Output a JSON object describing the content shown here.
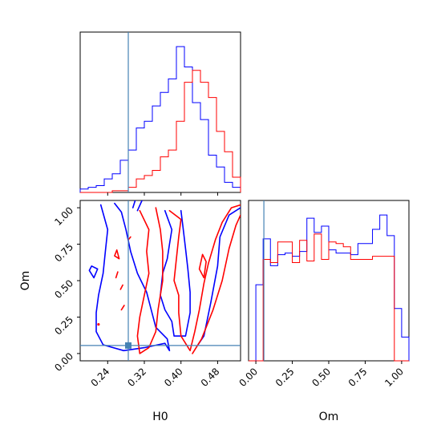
{
  "chart_data": {
    "type": "corner",
    "colors": {
      "series_a": "#0000ff",
      "series_b": "#ff0000",
      "truth": "#4682b4"
    },
    "parameters": [
      "H0",
      "Om"
    ],
    "truth": {
      "H0": 0.285,
      "Om": 0.055
    },
    "panels": [
      {
        "id": "H0-marginal",
        "type": "histogram",
        "xlim": [
          0.18,
          0.53
        ],
        "bin_edges": [
          0.18,
          0.1975,
          0.215,
          0.2325,
          0.25,
          0.2675,
          0.285,
          0.3025,
          0.32,
          0.3375,
          0.355,
          0.3725,
          0.39,
          0.4075,
          0.425,
          0.4425,
          0.46,
          0.4775,
          0.495,
          0.5125,
          0.53
        ],
        "series": [
          {
            "color": "blue",
            "counts": [
              2,
              3,
              4,
              8,
              11,
              19,
              25,
              38,
              42,
              51,
              59,
              67,
              86,
              74,
              53,
              43,
              22,
              15,
              6,
              3
            ]
          },
          {
            "color": "red",
            "counts": [
              0,
              0,
              0,
              0,
              1,
              1,
              3,
              8,
              10,
              13,
              21,
              25,
              42,
              65,
              72,
              65,
              56,
              36,
              24,
              9
            ]
          }
        ]
      },
      {
        "id": "Om-marginal",
        "type": "histogram",
        "xlim": [
          -0.05,
          1.05
        ],
        "bin_edges": [
          -0.05,
          0.0,
          0.05,
          0.1,
          0.15,
          0.2,
          0.25,
          0.3,
          0.35,
          0.4,
          0.45,
          0.5,
          0.55,
          0.6,
          0.65,
          0.7,
          0.75,
          0.8,
          0.85,
          0.9,
          0.95,
          1.0,
          1.05
        ],
        "series": [
          {
            "color": "blue",
            "counts": [
              0,
              48,
              77,
              60,
              67,
              68,
              66,
              69,
              90,
              81,
              85,
              70,
              68,
              68,
              67,
              74,
              74,
              83,
              92,
              79,
              33,
              15
            ]
          },
          {
            "color": "red",
            "counts": [
              0,
              0,
              64,
              62,
              75,
              75,
              62,
              76,
              63,
              80,
              64,
              75,
              74,
              72,
              64,
              64,
              64,
              66,
              66,
              66,
              0,
              0
            ]
          }
        ]
      },
      {
        "id": "H0-Om-joint",
        "type": "contour",
        "xlabel": "H0",
        "ylabel": "Om",
        "xlim": [
          0.18,
          0.53
        ],
        "ylim": [
          -0.05,
          1.05
        ],
        "series": [
          {
            "color": "blue",
            "contours": [
              [
                [
                  0.225,
                  1.02
                ],
                [
                  0.24,
                  0.85
                ],
                [
                  0.235,
                  0.7
                ],
                [
                  0.23,
                  0.55
                ],
                [
                  0.22,
                  0.4
                ],
                [
                  0.215,
                  0.28
                ],
                [
                  0.215,
                  0.15
                ],
                [
                  0.23,
                  0.06
                ],
                [
                  0.275,
                  0.02
                ],
                [
                  0.32,
                  0.04
                ],
                [
                  0.365,
                  0.07
                ],
                [
                  0.375,
                  0.02
                ],
                [
                  0.37,
                  0.1
                ],
                [
                  0.345,
                  0.18
                ],
                [
                  0.335,
                  0.3
                ],
                [
                  0.325,
                  0.42
                ],
                [
                  0.305,
                  0.55
                ],
                [
                  0.29,
                  0.7
                ],
                [
                  0.28,
                  0.85
                ],
                [
                  0.27,
                  0.97
                ],
                [
                  0.255,
                  1.03
                ]
              ],
              [
                [
                  0.365,
                  0.98
                ],
                [
                  0.38,
                  0.85
                ],
                [
                  0.375,
                  0.75
                ],
                [
                  0.37,
                  0.65
                ],
                [
                  0.36,
                  0.55
                ],
                [
                  0.355,
                  0.4
                ],
                [
                  0.365,
                  0.3
                ],
                [
                  0.38,
                  0.22
                ],
                [
                  0.385,
                  0.12
                ],
                [
                  0.41,
                  0.12
                ],
                [
                  0.42,
                  0.28
                ],
                [
                  0.42,
                  0.42
                ],
                [
                  0.415,
                  0.58
                ],
                [
                  0.41,
                  0.72
                ],
                [
                  0.405,
                  0.85
                ],
                [
                  0.4,
                  0.98
                ]
              ],
              [
                [
                  0.435,
                  0.05
                ],
                [
                  0.45,
                  0.12
                ],
                [
                  0.465,
                  0.35
                ],
                [
                  0.48,
                  0.6
                ],
                [
                  0.485,
                  0.8
                ],
                [
                  0.505,
                  0.95
                ],
                [
                  0.53,
                  1.0
                ]
              ],
              [
                [
                  0.2,
                  0.57
                ],
                [
                  0.21,
                  0.52
                ],
                [
                  0.218,
                  0.58
                ],
                [
                  0.205,
                  0.6
                ],
                [
                  0.2,
                  0.57
                ]
              ],
              [
                [
                  0.305,
                  0.98
                ],
                [
                  0.315,
                  1.05
                ]
              ],
              [
                [
                  0.3,
                  1.05
                ],
                [
                  0.295,
                  1.0
                ]
              ]
            ]
          },
          {
            "color": "red",
            "contours": [
              [
                [
                  0.31,
                  0.98
                ],
                [
                  0.33,
                  0.85
                ],
                [
                  0.325,
                  0.7
                ],
                [
                  0.33,
                  0.55
                ],
                [
                  0.32,
                  0.4
                ],
                [
                  0.31,
                  0.25
                ],
                [
                  0.305,
                  0.12
                ],
                [
                  0.31,
                  0.0
                ],
                [
                  0.33,
                  0.04
                ],
                [
                  0.345,
                  0.15
                ],
                [
                  0.35,
                  0.3
                ],
                [
                  0.36,
                  0.5
                ],
                [
                  0.36,
                  0.7
                ],
                [
                  0.355,
                  0.85
                ],
                [
                  0.345,
                  1.0
                ]
              ],
              [
                [
                  0.375,
                  0.98
                ],
                [
                  0.4,
                  0.92
                ],
                [
                  0.395,
                  0.8
                ],
                [
                  0.39,
                  0.65
                ],
                [
                  0.385,
                  0.5
                ],
                [
                  0.395,
                  0.4
                ],
                [
                  0.395,
                  0.28
                ],
                [
                  0.4,
                  0.12
                ],
                [
                  0.42,
                  0.02
                ],
                [
                  0.43,
                  0.15
                ],
                [
                  0.44,
                  0.3
                ],
                [
                  0.45,
                  0.48
                ],
                [
                  0.46,
                  0.62
                ],
                [
                  0.475,
                  0.78
                ],
                [
                  0.49,
                  0.9
                ],
                [
                  0.51,
                  1.0
                ],
                [
                  0.53,
                  1.02
                ]
              ],
              [
                [
                  0.425,
                  0.0
                ],
                [
                  0.445,
                  0.1
                ],
                [
                  0.47,
                  0.3
                ],
                [
                  0.49,
                  0.5
                ],
                [
                  0.505,
                  0.72
                ],
                [
                  0.52,
                  0.88
                ],
                [
                  0.53,
                  0.95
                ]
              ],
              [
                [
                  0.44,
                  0.58
                ],
                [
                  0.45,
                  0.52
                ],
                [
                  0.455,
                  0.63
                ],
                [
                  0.447,
                  0.68
                ],
                [
                  0.44,
                  0.58
                ]
              ],
              [
                [
                  0.22,
                  0.2
                ]
              ],
              [
                [
                  0.258,
                  0.52
                ],
                [
                  0.262,
                  0.56
                ]
              ],
              [
                [
                  0.27,
                  0.3
                ],
                [
                  0.276,
                  0.33
                ]
              ],
              [
                [
                  0.268,
                  0.44
                ],
                [
                  0.273,
                  0.47
                ]
              ],
              [
                [
                  0.285,
                  0.78
                ],
                [
                  0.29,
                  0.8
                ]
              ],
              [
                [
                  0.255,
                  0.67
                ],
                [
                  0.265,
                  0.65
                ],
                [
                  0.26,
                  0.71
                ],
                [
                  0.255,
                  0.67
                ]
              ]
            ]
          }
        ]
      }
    ],
    "ticks": {
      "H0": [
        0.24,
        0.32,
        0.4,
        0.48
      ],
      "H0_labels": [
        "0.24",
        "0.32",
        "0.40",
        "0.48"
      ],
      "Om": [
        0.0,
        0.25,
        0.5,
        0.75,
        1.0
      ],
      "Om_labels": [
        "0.00",
        "0.25",
        "0.50",
        "0.75",
        "1.00"
      ]
    }
  }
}
